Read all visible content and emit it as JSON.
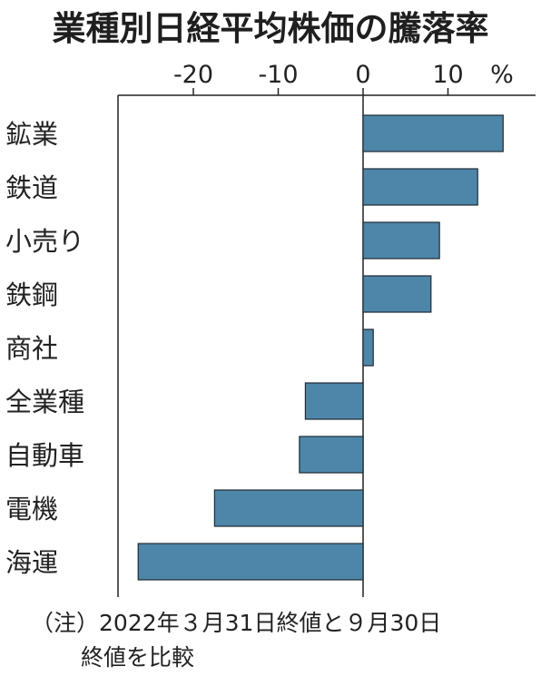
{
  "chart_data": {
    "type": "bar",
    "orientation": "horizontal",
    "title": "業種別日経平均株価の騰落率",
    "unit": "%",
    "categories": [
      "鉱業",
      "鉄道",
      "小売り",
      "鉄鋼",
      "商社",
      "全業種",
      "自動車",
      "電機",
      "海運"
    ],
    "values": [
      16.5,
      13.5,
      9.0,
      8.0,
      1.2,
      -6.8,
      -7.5,
      -17.5,
      -26.5
    ],
    "x_ticks": [
      "-20",
      "-10",
      "0",
      "10"
    ],
    "x_tick_values": [
      -20,
      -10,
      0,
      10
    ],
    "xlim": [
      -29,
      18
    ],
    "bar_color": "#4d86a9",
    "legend": "none",
    "grid": false
  },
  "note": {
    "label": "（注）",
    "line1": "2022年３月31日終値と９月30日",
    "line2": "終値を比較"
  }
}
